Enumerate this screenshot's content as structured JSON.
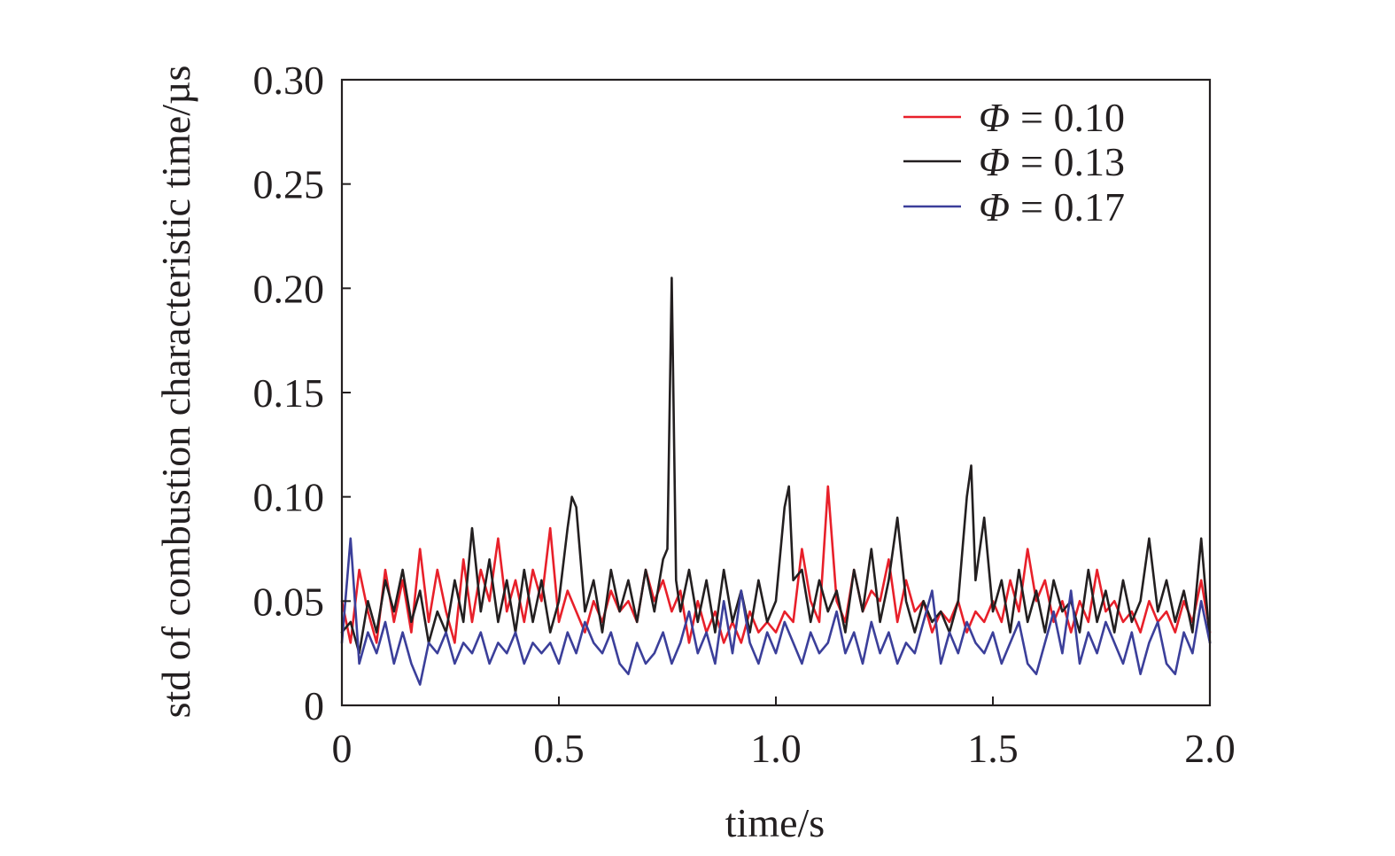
{
  "chart_data": {
    "type": "line",
    "title": "",
    "xlabel": "time/s",
    "ylabel": "std of combustion characteristic time/µs",
    "xlim": [
      0,
      2.0
    ],
    "ylim": [
      0,
      0.3
    ],
    "xticks": [
      0,
      0.5,
      1.0,
      1.5,
      2.0
    ],
    "xtick_labels": [
      "0",
      "0.5",
      "1.0",
      "1.5",
      "2.0"
    ],
    "yticks": [
      0,
      0.05,
      0.1,
      0.15,
      0.2,
      0.25,
      0.3
    ],
    "ytick_labels": [
      "0",
      "0.05",
      "0.10",
      "0.15",
      "0.20",
      "0.25",
      "0.30"
    ],
    "grid": false,
    "legend_position": "top-right",
    "series": [
      {
        "name": "Φ = 0.10",
        "legend_symbol": "Φ",
        "legend_value": "= 0.10",
        "color": "#e8202a",
        "x": [
          0,
          0.02,
          0.04,
          0.06,
          0.08,
          0.1,
          0.12,
          0.14,
          0.16,
          0.18,
          0.2,
          0.22,
          0.24,
          0.26,
          0.28,
          0.3,
          0.32,
          0.34,
          0.36,
          0.38,
          0.4,
          0.42,
          0.44,
          0.46,
          0.48,
          0.5,
          0.52,
          0.54,
          0.56,
          0.58,
          0.6,
          0.62,
          0.64,
          0.66,
          0.68,
          0.7,
          0.72,
          0.74,
          0.76,
          0.78,
          0.8,
          0.82,
          0.84,
          0.86,
          0.88,
          0.9,
          0.92,
          0.94,
          0.96,
          0.98,
          1.0,
          1.02,
          1.04,
          1.06,
          1.08,
          1.1,
          1.12,
          1.14,
          1.16,
          1.18,
          1.2,
          1.22,
          1.24,
          1.26,
          1.28,
          1.3,
          1.32,
          1.34,
          1.36,
          1.38,
          1.4,
          1.42,
          1.44,
          1.46,
          1.48,
          1.5,
          1.52,
          1.54,
          1.56,
          1.58,
          1.6,
          1.62,
          1.64,
          1.66,
          1.68,
          1.7,
          1.72,
          1.74,
          1.76,
          1.78,
          1.8,
          1.82,
          1.84,
          1.86,
          1.88,
          1.9,
          1.92,
          1.94,
          1.96,
          1.98,
          2.0
        ],
        "y": [
          0.05,
          0.03,
          0.065,
          0.045,
          0.03,
          0.065,
          0.04,
          0.06,
          0.035,
          0.075,
          0.04,
          0.065,
          0.045,
          0.03,
          0.07,
          0.04,
          0.065,
          0.05,
          0.08,
          0.045,
          0.06,
          0.04,
          0.065,
          0.05,
          0.085,
          0.04,
          0.055,
          0.045,
          0.035,
          0.05,
          0.04,
          0.055,
          0.045,
          0.05,
          0.04,
          0.065,
          0.05,
          0.06,
          0.045,
          0.055,
          0.03,
          0.05,
          0.035,
          0.045,
          0.03,
          0.04,
          0.03,
          0.045,
          0.035,
          0.04,
          0.035,
          0.045,
          0.04,
          0.075,
          0.05,
          0.04,
          0.105,
          0.05,
          0.04,
          0.065,
          0.045,
          0.055,
          0.05,
          0.07,
          0.04,
          0.06,
          0.045,
          0.05,
          0.035,
          0.045,
          0.04,
          0.05,
          0.035,
          0.045,
          0.04,
          0.05,
          0.04,
          0.06,
          0.045,
          0.075,
          0.05,
          0.06,
          0.04,
          0.05,
          0.035,
          0.05,
          0.04,
          0.065,
          0.045,
          0.05,
          0.04,
          0.045,
          0.035,
          0.05,
          0.04,
          0.045,
          0.035,
          0.05,
          0.04,
          0.06,
          0.035
        ]
      },
      {
        "name": "Φ = 0.13",
        "legend_symbol": "Φ",
        "legend_value": "= 0.13",
        "color": "#231f20",
        "x": [
          0,
          0.02,
          0.04,
          0.06,
          0.08,
          0.1,
          0.12,
          0.14,
          0.16,
          0.18,
          0.2,
          0.22,
          0.24,
          0.26,
          0.28,
          0.3,
          0.32,
          0.34,
          0.36,
          0.38,
          0.4,
          0.42,
          0.44,
          0.46,
          0.48,
          0.5,
          0.52,
          0.53,
          0.54,
          0.56,
          0.58,
          0.6,
          0.62,
          0.64,
          0.66,
          0.68,
          0.7,
          0.72,
          0.74,
          0.75,
          0.76,
          0.77,
          0.78,
          0.8,
          0.82,
          0.84,
          0.86,
          0.88,
          0.9,
          0.92,
          0.94,
          0.96,
          0.98,
          1.0,
          1.02,
          1.03,
          1.04,
          1.06,
          1.08,
          1.1,
          1.12,
          1.14,
          1.16,
          1.18,
          1.2,
          1.22,
          1.24,
          1.26,
          1.28,
          1.3,
          1.32,
          1.34,
          1.36,
          1.38,
          1.4,
          1.42,
          1.44,
          1.45,
          1.46,
          1.48,
          1.5,
          1.52,
          1.54,
          1.56,
          1.58,
          1.6,
          1.62,
          1.64,
          1.66,
          1.68,
          1.7,
          1.72,
          1.74,
          1.76,
          1.78,
          1.8,
          1.82,
          1.84,
          1.86,
          1.88,
          1.9,
          1.92,
          1.94,
          1.96,
          1.98,
          2.0
        ],
        "y": [
          0.035,
          0.04,
          0.025,
          0.05,
          0.035,
          0.06,
          0.045,
          0.065,
          0.04,
          0.055,
          0.03,
          0.045,
          0.035,
          0.06,
          0.04,
          0.085,
          0.045,
          0.07,
          0.04,
          0.06,
          0.035,
          0.065,
          0.04,
          0.06,
          0.035,
          0.05,
          0.085,
          0.1,
          0.095,
          0.045,
          0.06,
          0.035,
          0.065,
          0.045,
          0.06,
          0.04,
          0.065,
          0.045,
          0.07,
          0.075,
          0.205,
          0.06,
          0.045,
          0.065,
          0.04,
          0.06,
          0.035,
          0.065,
          0.04,
          0.055,
          0.035,
          0.06,
          0.04,
          0.05,
          0.095,
          0.105,
          0.06,
          0.065,
          0.04,
          0.06,
          0.045,
          0.055,
          0.035,
          0.065,
          0.045,
          0.075,
          0.04,
          0.06,
          0.09,
          0.05,
          0.035,
          0.05,
          0.04,
          0.045,
          0.035,
          0.05,
          0.1,
          0.115,
          0.06,
          0.09,
          0.045,
          0.06,
          0.035,
          0.065,
          0.04,
          0.055,
          0.035,
          0.06,
          0.045,
          0.05,
          0.035,
          0.065,
          0.04,
          0.055,
          0.035,
          0.06,
          0.04,
          0.05,
          0.08,
          0.045,
          0.06,
          0.04,
          0.055,
          0.035,
          0.08,
          0.03
        ]
      },
      {
        "name": "Φ = 0.17",
        "legend_symbol": "Φ",
        "legend_value": "= 0.17",
        "color": "#3b3f9a",
        "x": [
          0,
          0.02,
          0.04,
          0.06,
          0.08,
          0.1,
          0.12,
          0.14,
          0.16,
          0.18,
          0.2,
          0.22,
          0.24,
          0.26,
          0.28,
          0.3,
          0.32,
          0.34,
          0.36,
          0.38,
          0.4,
          0.42,
          0.44,
          0.46,
          0.48,
          0.5,
          0.52,
          0.54,
          0.56,
          0.58,
          0.6,
          0.62,
          0.64,
          0.66,
          0.68,
          0.7,
          0.72,
          0.74,
          0.76,
          0.78,
          0.8,
          0.82,
          0.84,
          0.86,
          0.88,
          0.9,
          0.92,
          0.94,
          0.96,
          0.98,
          1.0,
          1.02,
          1.04,
          1.06,
          1.08,
          1.1,
          1.12,
          1.14,
          1.16,
          1.18,
          1.2,
          1.22,
          1.24,
          1.26,
          1.28,
          1.3,
          1.32,
          1.34,
          1.36,
          1.38,
          1.4,
          1.42,
          1.44,
          1.46,
          1.48,
          1.5,
          1.52,
          1.54,
          1.56,
          1.58,
          1.6,
          1.62,
          1.64,
          1.66,
          1.68,
          1.7,
          1.72,
          1.74,
          1.76,
          1.78,
          1.8,
          1.82,
          1.84,
          1.86,
          1.88,
          1.9,
          1.92,
          1.94,
          1.96,
          1.98,
          2.0
        ],
        "y": [
          0.03,
          0.08,
          0.02,
          0.035,
          0.025,
          0.04,
          0.02,
          0.035,
          0.02,
          0.01,
          0.03,
          0.025,
          0.035,
          0.02,
          0.03,
          0.025,
          0.035,
          0.02,
          0.03,
          0.025,
          0.035,
          0.02,
          0.03,
          0.025,
          0.03,
          0.02,
          0.035,
          0.025,
          0.04,
          0.03,
          0.025,
          0.035,
          0.02,
          0.015,
          0.03,
          0.02,
          0.025,
          0.035,
          0.02,
          0.03,
          0.045,
          0.025,
          0.035,
          0.02,
          0.05,
          0.025,
          0.055,
          0.03,
          0.02,
          0.035,
          0.025,
          0.04,
          0.03,
          0.02,
          0.035,
          0.025,
          0.03,
          0.045,
          0.025,
          0.035,
          0.02,
          0.04,
          0.025,
          0.035,
          0.02,
          0.03,
          0.025,
          0.04,
          0.055,
          0.02,
          0.035,
          0.025,
          0.04,
          0.03,
          0.025,
          0.035,
          0.02,
          0.03,
          0.04,
          0.02,
          0.015,
          0.03,
          0.045,
          0.025,
          0.055,
          0.02,
          0.035,
          0.025,
          0.04,
          0.03,
          0.02,
          0.035,
          0.015,
          0.03,
          0.04,
          0.02,
          0.015,
          0.035,
          0.025,
          0.05,
          0.03
        ]
      }
    ]
  }
}
